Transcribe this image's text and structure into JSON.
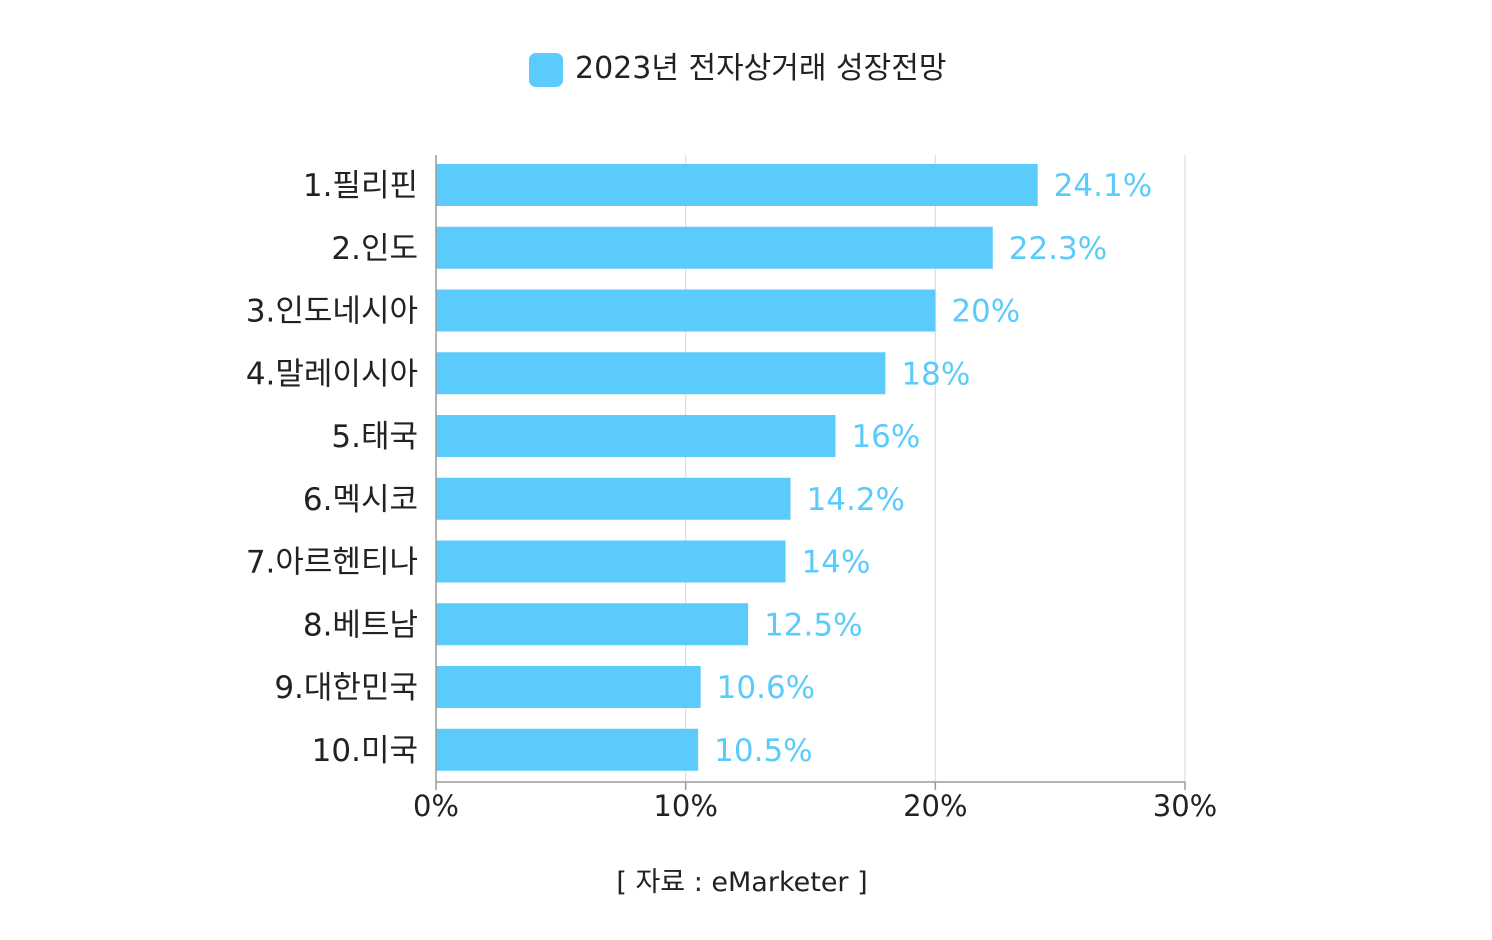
{
  "chart_data": {
    "type": "bar",
    "orientation": "horizontal",
    "categories": [
      "1.필리핀",
      "2.인도",
      "3.인도네시아",
      "4.말레이시아",
      "5.태국",
      "6.멕시코",
      "7.아르헨티나",
      "8.베트남",
      "9.대한민국",
      "10.미국"
    ],
    "series": [
      {
        "name": "2023년 전자상거래 성장전망",
        "values": [
          24.1,
          22.3,
          20,
          18,
          16,
          14.2,
          14,
          12.5,
          10.6,
          10.5
        ],
        "labels": [
          "24.1%",
          "22.3%",
          "20%",
          "18%",
          "16%",
          "14.2%",
          "14%",
          "12.5%",
          "10.6%",
          "10.5%"
        ]
      }
    ],
    "xlim": [
      0,
      30
    ],
    "xticks": [
      0,
      10,
      20,
      30
    ],
    "xtick_labels": [
      "0%",
      "10%",
      "20%",
      "30%"
    ],
    "grid": true,
    "legend_position": "top-center",
    "bar_color": "#5bcbfb",
    "label_color": "#5bcbfb",
    "source": "[ 자료 : eMarketer ]"
  }
}
